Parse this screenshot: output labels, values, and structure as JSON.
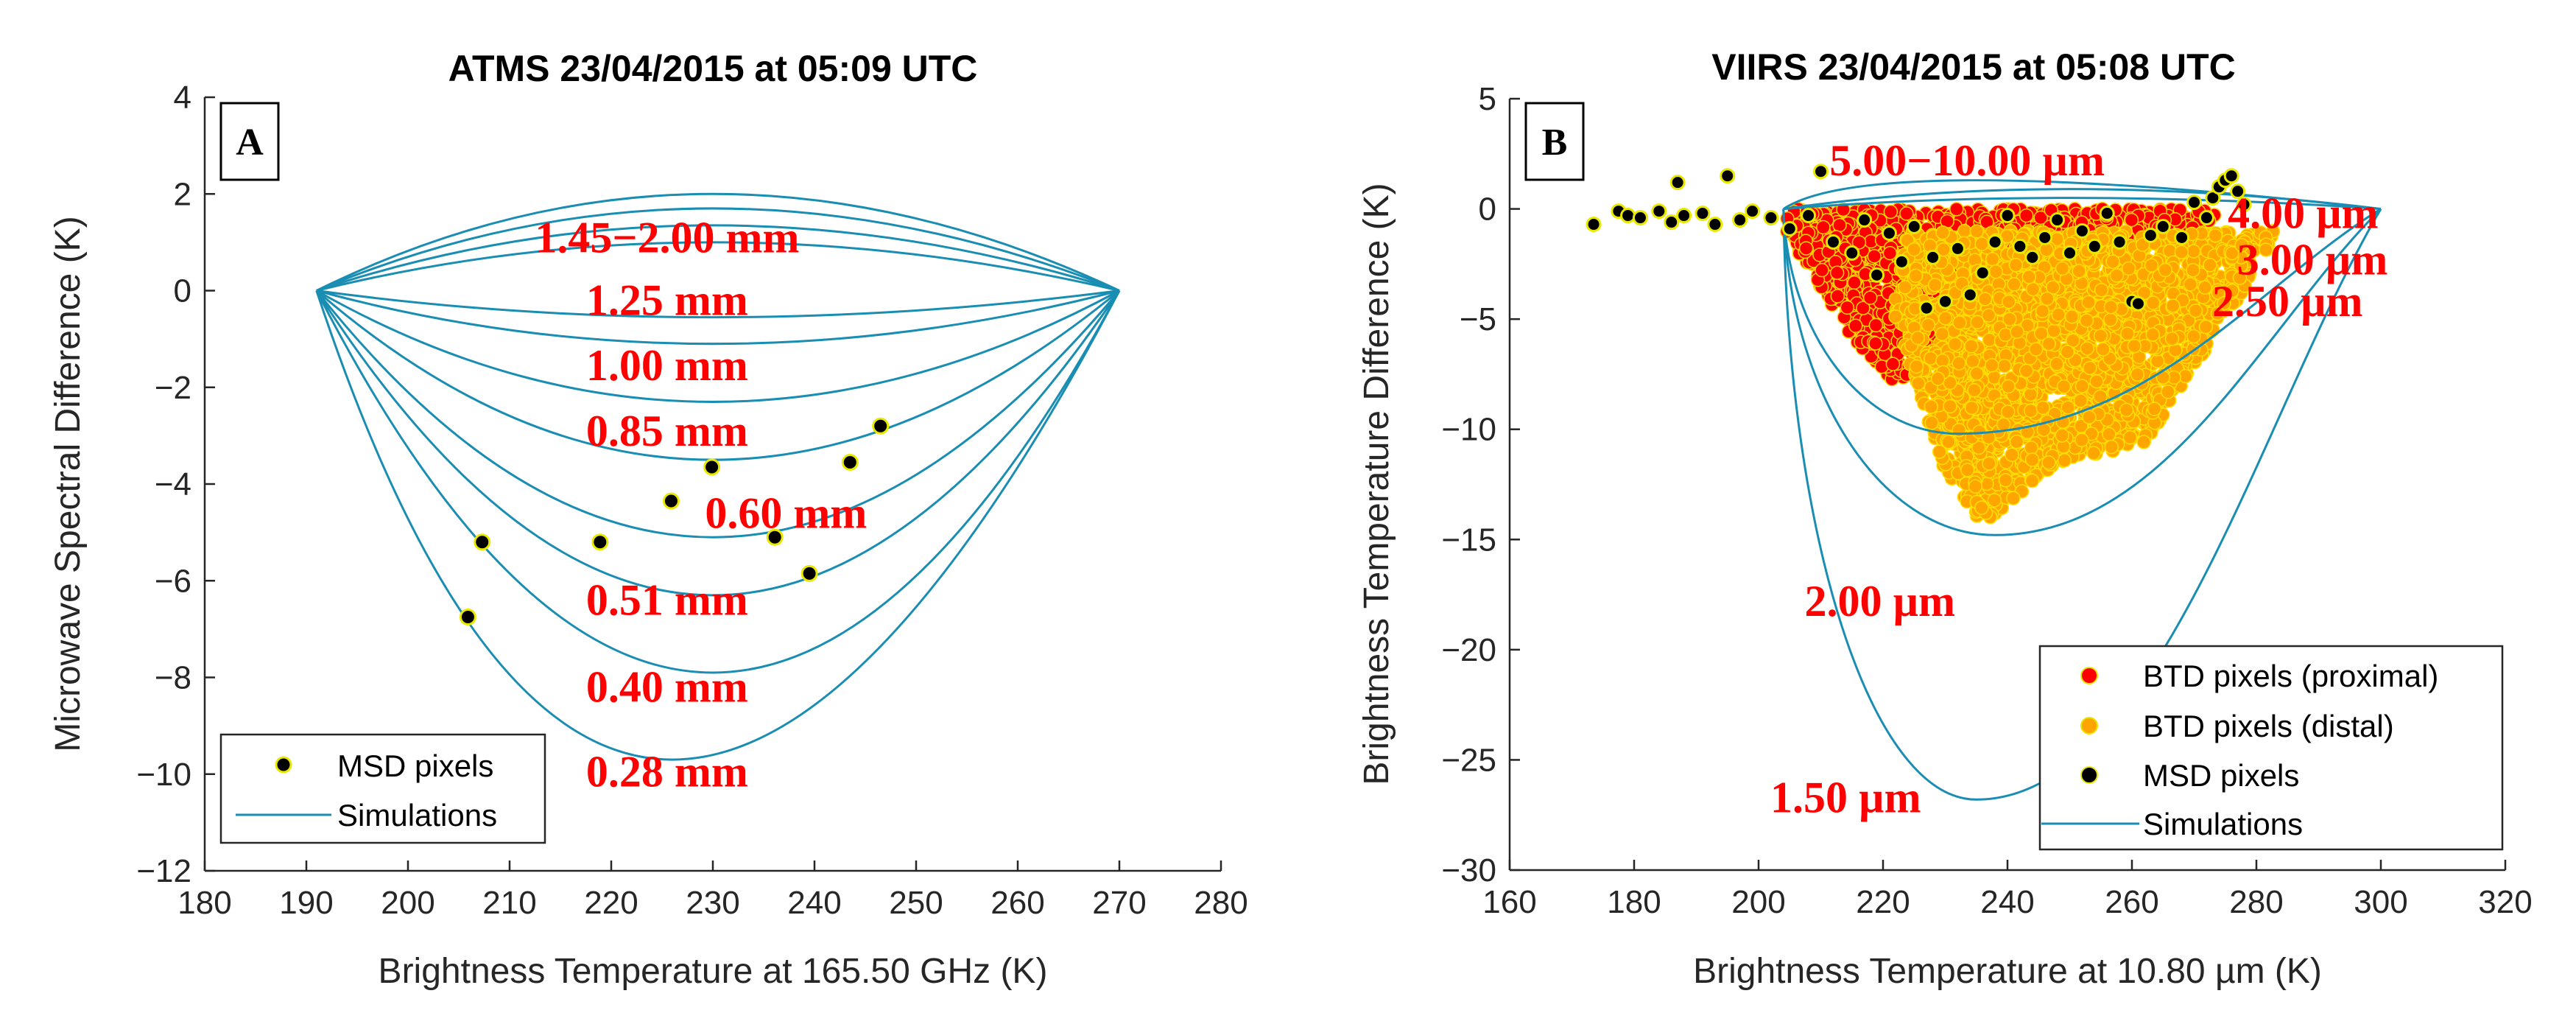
{
  "chart_data": [
    {
      "type": "line",
      "panel": "A",
      "title": "ATMS 23/04/2015 at 05:09 UTC",
      "xlabel": "Brightness Temperature at 165.50 GHz (K)",
      "ylabel": "Microwave Spectral Difference (K)",
      "xlim": [
        180,
        280
      ],
      "ylim": [
        -12,
        4
      ],
      "xticks": [
        180,
        190,
        200,
        210,
        220,
        230,
        240,
        250,
        260,
        270,
        280
      ],
      "yticks": [
        -12,
        -10,
        -8,
        -6,
        -4,
        -2,
        0,
        2,
        4
      ],
      "xtick_labels": [
        "180",
        "190",
        "200",
        "210",
        "220",
        "230",
        "240",
        "250",
        "260",
        "270",
        "280"
      ],
      "ytick_labels": [
        "−12",
        "−10",
        "−8",
        "−6",
        "−4",
        "−2",
        "0",
        "2",
        "4"
      ],
      "simulations": {
        "x_start": 191,
        "x_end": 270,
        "peaks": [
          {
            "x": 230,
            "y": 2.0
          },
          {
            "x": 230,
            "y": 1.7
          },
          {
            "x": 230,
            "y": 1.35
          },
          {
            "x": 230,
            "y": 1.0
          },
          {
            "x": 230,
            "y": -0.55
          },
          {
            "x": 230,
            "y": -1.1
          },
          {
            "x": 230,
            "y": -2.3
          },
          {
            "x": 230,
            "y": -3.5
          },
          {
            "x": 230,
            "y": -5.1
          },
          {
            "x": 230,
            "y": -6.3
          },
          {
            "x": 230,
            "y": -7.9
          },
          {
            "x": 226,
            "y": -9.7
          }
        ]
      },
      "series": [
        {
          "name": "MSD pixels",
          "points": [
            {
              "x": 205.9,
              "y": -6.75
            },
            {
              "x": 207.3,
              "y": -5.2
            },
            {
              "x": 218.9,
              "y": -5.2
            },
            {
              "x": 225.9,
              "y": -4.35
            },
            {
              "x": 229.9,
              "y": -3.65
            },
            {
              "x": 236.1,
              "y": -5.1
            },
            {
              "x": 239.5,
              "y": -5.85
            },
            {
              "x": 243.5,
              "y": -3.55
            },
            {
              "x": 246.5,
              "y": -2.8
            }
          ]
        }
      ],
      "annotations": [
        {
          "text": "1.45−2.00 mm",
          "x": 225.5,
          "y": 1.1
        },
        {
          "text": "1.25 mm",
          "x": 225.5,
          "y": -0.2
        },
        {
          "text": "1.00 mm",
          "x": 225.5,
          "y": -1.55
        },
        {
          "text": "0.85 mm",
          "x": 225.5,
          "y": -2.9
        },
        {
          "text": "0.60 mm",
          "x": 237.2,
          "y": -4.6
        },
        {
          "text": "0.51 mm",
          "x": 225.5,
          "y": -6.4
        },
        {
          "text": "0.40 mm",
          "x": 225.5,
          "y": -8.2
        },
        {
          "text": "0.28 mm",
          "x": 225.5,
          "y": -9.95
        }
      ],
      "legend": {
        "position": "bottom-left",
        "items": [
          "MSD pixels",
          "Simulations"
        ]
      }
    },
    {
      "type": "scatter",
      "panel": "B",
      "title": "VIIRS 23/04/2015 at 05:08 UTC",
      "xlabel": "Brightness Temperature at 10.80 µm (K)",
      "ylabel": "Brightness Temperature Difference (K)",
      "xlim": [
        160,
        320
      ],
      "ylim": [
        -30,
        5
      ],
      "xticks": [
        160,
        180,
        200,
        220,
        240,
        260,
        280,
        300,
        320
      ],
      "yticks": [
        -30,
        -25,
        -20,
        -15,
        -10,
        -5,
        0,
        5
      ],
      "xtick_labels": [
        "160",
        "180",
        "200",
        "220",
        "240",
        "260",
        "280",
        "300",
        "320"
      ],
      "ytick_labels": [
        "−30",
        "−25",
        "−20",
        "−15",
        "−10",
        "−5",
        "0",
        "5"
      ],
      "simulations": {
        "x_start": 204,
        "x_end": 300,
        "minima": [
          {
            "x": 235,
            "y": 1.3
          },
          {
            "x": 250,
            "y": 0.9
          },
          {
            "x": 250,
            "y": 0.5
          },
          {
            "x": 232,
            "y": -10.2
          },
          {
            "x": 238,
            "y": -14.8
          },
          {
            "x": 235,
            "y": -26.8
          }
        ]
      },
      "series": [
        {
          "name": "BTD pixels (proximal)",
          "x_range": [
            204,
            274
          ],
          "y_range": [
            -8.0,
            0
          ],
          "color": "#ff0000"
        },
        {
          "name": "BTD pixels (distal)",
          "x_range": [
            222,
            284
          ],
          "y_range": [
            -14.3,
            -1
          ],
          "color": "#ffa500"
        },
        {
          "name": "MSD pixels",
          "points": [
            {
              "x": 173.5,
              "y": -0.7
            },
            {
              "x": 177.5,
              "y": -0.1
            },
            {
              "x": 179,
              "y": -0.3
            },
            {
              "x": 181,
              "y": -0.4
            },
            {
              "x": 184,
              "y": -0.1
            },
            {
              "x": 186,
              "y": -0.6
            },
            {
              "x": 187,
              "y": 1.2
            },
            {
              "x": 188,
              "y": -0.3
            },
            {
              "x": 191,
              "y": -0.2
            },
            {
              "x": 193,
              "y": -0.7
            },
            {
              "x": 195,
              "y": 1.5
            },
            {
              "x": 197,
              "y": -0.5
            },
            {
              "x": 199,
              "y": -0.1
            },
            {
              "x": 202,
              "y": -0.4
            },
            {
              "x": 205,
              "y": -0.9
            },
            {
              "x": 208,
              "y": -0.3
            },
            {
              "x": 210,
              "y": 1.7
            },
            {
              "x": 212,
              "y": -1.5
            },
            {
              "x": 215,
              "y": -2.0
            },
            {
              "x": 217,
              "y": -0.5
            },
            {
              "x": 219,
              "y": -3.0
            },
            {
              "x": 221,
              "y": -1.1
            },
            {
              "x": 223,
              "y": -2.4
            },
            {
              "x": 225,
              "y": -0.8
            },
            {
              "x": 227,
              "y": -4.5
            },
            {
              "x": 228,
              "y": -2.2
            },
            {
              "x": 230,
              "y": -4.2
            },
            {
              "x": 232,
              "y": -1.8
            },
            {
              "x": 234,
              "y": -3.9
            },
            {
              "x": 236,
              "y": -2.9
            },
            {
              "x": 238,
              "y": -1.5
            },
            {
              "x": 240,
              "y": -0.3
            },
            {
              "x": 242,
              "y": -1.7
            },
            {
              "x": 244,
              "y": -2.2
            },
            {
              "x": 246,
              "y": -1.3
            },
            {
              "x": 248,
              "y": -0.5
            },
            {
              "x": 250,
              "y": -2.0
            },
            {
              "x": 252,
              "y": -1.0
            },
            {
              "x": 254,
              "y": -1.7
            },
            {
              "x": 256,
              "y": -0.2
            },
            {
              "x": 258,
              "y": -1.5
            },
            {
              "x": 260,
              "y": -4.2
            },
            {
              "x": 261,
              "y": -4.3
            },
            {
              "x": 263,
              "y": -1.2
            },
            {
              "x": 265,
              "y": -0.8
            },
            {
              "x": 268,
              "y": -1.3
            },
            {
              "x": 270,
              "y": 0.3
            },
            {
              "x": 272,
              "y": -0.4
            },
            {
              "x": 273,
              "y": 0.5
            },
            {
              "x": 274,
              "y": 1.0
            },
            {
              "x": 275,
              "y": 1.3
            },
            {
              "x": 276,
              "y": 1.5
            },
            {
              "x": 277,
              "y": 0.8
            },
            {
              "x": 278,
              "y": 0.2
            }
          ]
        }
      ],
      "annotations": [
        {
          "text": "5.00−10.00 µm",
          "x": 233.5,
          "y": 2.2
        },
        {
          "text": "4.00 µm",
          "x": 287.5,
          "y": -0.2
        },
        {
          "text": "3.00 µm",
          "x": 289,
          "y": -2.3
        },
        {
          "text": "2.50 µm",
          "x": 285,
          "y": -4.2
        },
        {
          "text": "2.00 µm",
          "x": 219.5,
          "y": -17.8
        },
        {
          "text": "1.50 µm",
          "x": 214,
          "y": -26.7
        }
      ],
      "legend": {
        "position": "bottom-right",
        "items": [
          "BTD pixels (proximal)",
          "BTD pixels (distal)",
          "MSD pixels",
          "Simulations"
        ]
      }
    }
  ],
  "panel_letters": [
    "A",
    "B"
  ],
  "colors": {
    "simulation": "#1a8db3",
    "msd": "#000000",
    "msd_edge": "#e8e800",
    "proximal": "#ff0000",
    "distal": "#ffa500",
    "annotation": "#ff0000"
  }
}
